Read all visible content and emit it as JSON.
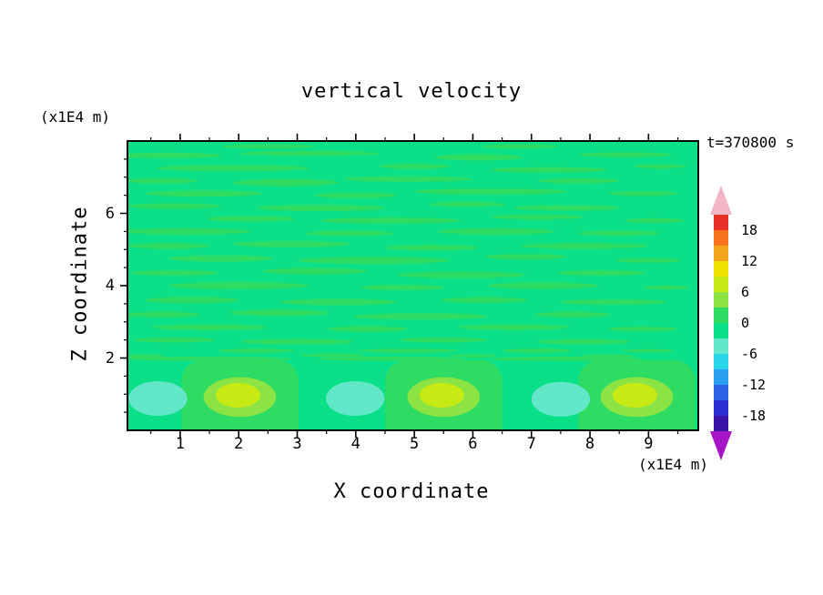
{
  "title": "vertical velocity",
  "time_label": "t=370800 s",
  "axis": {
    "x_label": "X coordinate",
    "y_label": "Z coordinate",
    "x_units": "(x1E4 m)",
    "y_units": "(x1E4 m)",
    "x_ticks": [
      1,
      2,
      3,
      4,
      5,
      6,
      7,
      8,
      9
    ],
    "y_ticks": [
      2,
      4,
      6
    ],
    "x_minor_step": 0.5,
    "y_minor_step": 0.5,
    "xlim": [
      0.1,
      9.85
    ],
    "ylim": [
      0,
      8
    ]
  },
  "colorbar": {
    "labels": [
      18,
      12,
      6,
      0,
      -6,
      -12,
      -18
    ],
    "level_min": -21,
    "level_max": 21,
    "level_step": 3,
    "band_colors_high_to_low": [
      "#e83228",
      "#f5731d",
      "#f2a51b",
      "#eee202",
      "#c8ea14",
      "#8ce344",
      "#2edb63",
      "#0be089",
      "#63e7c9",
      "#29d5e8",
      "#28a0ef",
      "#2b62e8",
      "#2b2ed0",
      "#3a14a8"
    ],
    "arrow_high_color": "#f2b6c6",
    "arrow_low_color": "#a814c8"
  },
  "chart_data": {
    "type": "heatmap",
    "title": "vertical velocity",
    "xlabel": "X coordinate (x1E4 m)",
    "ylabel": "Z coordinate (x1E4 m)",
    "time_label": "t=370800 s",
    "xlim": [
      0.1,
      9.85
    ],
    "ylim": [
      0,
      8
    ],
    "contour_interval": 3,
    "value_range_shown": [
      -21,
      21
    ],
    "description": "Vertical velocity field: near-zero values (green bands around 0) with thin horizontal streak perturbations above z=2, and alternating downdraft (cyan, about -4) and updraft (yellow-green, about +7) convective cells below z=2.",
    "background_band": {
      "range": [
        -3,
        0
      ],
      "color": "#0be089"
    },
    "streak_band": {
      "range": [
        0,
        3
      ],
      "color": "#2edb63"
    },
    "streaks_xzwh": [
      [
        2.5,
        7.85,
        1.6,
        0.12
      ],
      [
        6.8,
        7.85,
        1.3,
        0.12
      ],
      [
        0.8,
        7.6,
        1.8,
        0.16
      ],
      [
        3.2,
        7.66,
        2.4,
        0.14
      ],
      [
        6.1,
        7.55,
        1.5,
        0.18
      ],
      [
        8.6,
        7.62,
        1.6,
        0.14
      ],
      [
        1.9,
        7.25,
        2.6,
        0.18
      ],
      [
        5.0,
        7.3,
        1.2,
        0.14
      ],
      [
        7.3,
        7.2,
        2.0,
        0.16
      ],
      [
        9.2,
        7.3,
        0.9,
        0.12
      ],
      [
        0.7,
        6.9,
        1.2,
        0.16
      ],
      [
        2.8,
        6.85,
        1.8,
        0.2
      ],
      [
        4.9,
        6.95,
        2.2,
        0.16
      ],
      [
        7.8,
        6.9,
        1.4,
        0.14
      ],
      [
        1.4,
        6.55,
        2.0,
        0.18
      ],
      [
        4.0,
        6.5,
        1.4,
        0.16
      ],
      [
        6.3,
        6.6,
        2.6,
        0.18
      ],
      [
        8.9,
        6.55,
        1.2,
        0.14
      ],
      [
        0.9,
        6.2,
        1.6,
        0.16
      ],
      [
        3.4,
        6.15,
        2.2,
        0.18
      ],
      [
        5.9,
        6.25,
        1.3,
        0.14
      ],
      [
        7.6,
        6.15,
        1.8,
        0.16
      ],
      [
        2.2,
        5.85,
        1.5,
        0.16
      ],
      [
        4.6,
        5.8,
        2.4,
        0.18
      ],
      [
        7.1,
        5.9,
        1.6,
        0.14
      ],
      [
        9.1,
        5.8,
        1.0,
        0.14
      ],
      [
        1.1,
        5.5,
        2.2,
        0.18
      ],
      [
        3.9,
        5.45,
        1.5,
        0.16
      ],
      [
        6.4,
        5.5,
        2.0,
        0.18
      ],
      [
        8.5,
        5.45,
        1.4,
        0.14
      ],
      [
        0.8,
        5.1,
        1.4,
        0.16
      ],
      [
        2.9,
        5.15,
        2.0,
        0.18
      ],
      [
        5.3,
        5.05,
        1.6,
        0.16
      ],
      [
        7.9,
        5.1,
        2.2,
        0.16
      ],
      [
        1.7,
        4.75,
        1.8,
        0.18
      ],
      [
        4.3,
        4.7,
        2.6,
        0.2
      ],
      [
        6.9,
        4.8,
        1.4,
        0.16
      ],
      [
        9.0,
        4.7,
        1.1,
        0.14
      ],
      [
        0.9,
        4.35,
        1.5,
        0.16
      ],
      [
        3.3,
        4.4,
        1.8,
        0.18
      ],
      [
        5.8,
        4.3,
        2.2,
        0.18
      ],
      [
        8.2,
        4.35,
        1.5,
        0.16
      ],
      [
        2.0,
        4.0,
        2.4,
        0.2
      ],
      [
        4.8,
        3.95,
        1.4,
        0.16
      ],
      [
        7.2,
        4.0,
        1.9,
        0.18
      ],
      [
        9.3,
        3.95,
        0.8,
        0.12
      ],
      [
        1.2,
        3.6,
        1.6,
        0.18
      ],
      [
        3.7,
        3.55,
        2.0,
        0.18
      ],
      [
        6.2,
        3.6,
        1.5,
        0.16
      ],
      [
        8.4,
        3.55,
        1.8,
        0.16
      ],
      [
        0.7,
        3.2,
        1.3,
        0.16
      ],
      [
        2.7,
        3.25,
        1.7,
        0.18
      ],
      [
        5.1,
        3.15,
        2.3,
        0.18
      ],
      [
        7.7,
        3.2,
        1.3,
        0.16
      ],
      [
        1.5,
        2.85,
        2.0,
        0.16
      ],
      [
        4.2,
        2.8,
        1.4,
        0.16
      ],
      [
        6.7,
        2.85,
        1.9,
        0.16
      ],
      [
        8.9,
        2.8,
        1.2,
        0.14
      ],
      [
        0.9,
        2.5,
        1.4,
        0.14
      ],
      [
        3.0,
        2.45,
        1.9,
        0.16
      ],
      [
        5.5,
        2.5,
        1.5,
        0.14
      ],
      [
        7.9,
        2.45,
        1.6,
        0.14
      ],
      [
        2.3,
        2.2,
        1.3,
        0.12
      ],
      [
        4.9,
        2.2,
        1.7,
        0.12
      ],
      [
        7.1,
        2.2,
        1.2,
        0.12
      ],
      [
        9.0,
        2.2,
        0.9,
        0.1
      ],
      [
        1.5,
        1.98,
        2.8,
        0.12
      ],
      [
        4.6,
        1.98,
        2.5,
        0.12
      ],
      [
        7.6,
        1.98,
        2.6,
        0.12
      ],
      [
        0.3,
        2.05,
        0.9,
        0.1
      ],
      [
        3.6,
        2.08,
        1.1,
        0.1
      ],
      [
        6.0,
        2.06,
        0.8,
        0.1
      ],
      [
        8.3,
        2.05,
        0.9,
        0.1
      ]
    ],
    "cells": [
      {
        "x": 0.62,
        "z": 0.88,
        "type": "downdraft",
        "peak_band": [
          -6,
          -3
        ]
      },
      {
        "x": 2.02,
        "z": 0.92,
        "type": "updraft",
        "peak_band": [
          6,
          9
        ]
      },
      {
        "x": 3.99,
        "z": 0.88,
        "type": "downdraft",
        "peak_band": [
          -6,
          -3
        ]
      },
      {
        "x": 5.5,
        "z": 0.92,
        "type": "updraft",
        "peak_band": [
          6,
          9
        ]
      },
      {
        "x": 7.5,
        "z": 0.86,
        "type": "downdraft",
        "peak_band": [
          -6,
          -3
        ]
      },
      {
        "x": 8.8,
        "z": 0.92,
        "type": "updraft",
        "peak_band": [
          6,
          9
        ]
      }
    ],
    "cell_style": {
      "down_color": "#63e7c9",
      "down_rx": 0.5,
      "down_rz": 0.48,
      "up_outer_color": "#8ce344",
      "up_outer_rx": 0.62,
      "up_outer_rz": 0.55,
      "up_inner_color": "#c8ea14",
      "up_inner_rx": 0.38,
      "up_inner_rz": 0.34,
      "up_halo_color": "#2edb63",
      "up_halo_w": 2.0,
      "up_halo_top": 1.95
    }
  }
}
